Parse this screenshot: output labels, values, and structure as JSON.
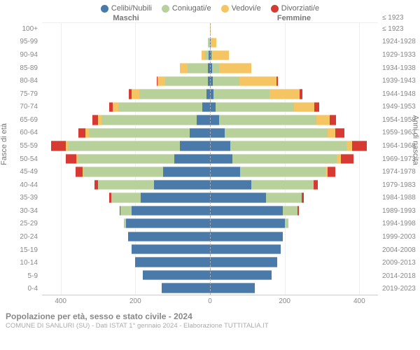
{
  "type": "population-pyramid",
  "legend": [
    {
      "label": "Celibi/Nubili",
      "color": "#4a7aa9"
    },
    {
      "label": "Coniugati/e",
      "color": "#b8d09a"
    },
    {
      "label": "Vedovi/e",
      "color": "#f6c563"
    },
    {
      "label": "Divorziati/e",
      "color": "#d63a32"
    }
  ],
  "header": {
    "male": "Maschi",
    "female": "Femmine",
    "birth_year_top": "≤ 1923"
  },
  "axis": {
    "x_ticks": [
      -400,
      -200,
      0,
      200,
      400
    ],
    "x_max": 450,
    "y_left_title": "Fasce di età",
    "y_right_title": "Anni di nascita",
    "grid_color": "#eeeeee",
    "center_dash_color": "#aaaaaa",
    "background": "#ffffff"
  },
  "age_bands": [
    "100+",
    "95-99",
    "90-94",
    "85-89",
    "80-84",
    "75-79",
    "70-74",
    "65-69",
    "60-64",
    "55-59",
    "50-54",
    "45-49",
    "40-44",
    "35-39",
    "30-34",
    "25-29",
    "20-24",
    "15-19",
    "10-14",
    "5-9",
    "0-4"
  ],
  "birth_years": [
    "≤ 1923",
    "1924-1928",
    "1929-1933",
    "1934-1938",
    "1939-1943",
    "1944-1948",
    "1949-1953",
    "1954-1958",
    "1959-1963",
    "1964-1968",
    "1969-1973",
    "1974-1978",
    "1979-1983",
    "1984-1988",
    "1989-1993",
    "1994-1998",
    "1999-2003",
    "2004-2008",
    "2009-2013",
    "2014-2018",
    "2019-2023"
  ],
  "male": [
    {
      "celibi": 0,
      "coniugati": 0,
      "vedovi": 0,
      "div": 0
    },
    {
      "celibi": 0,
      "coniugati": 3,
      "vedovi": 3,
      "div": 0
    },
    {
      "celibi": 3,
      "coniugati": 10,
      "vedovi": 10,
      "div": 0
    },
    {
      "celibi": 5,
      "coniugati": 55,
      "vedovi": 20,
      "div": 0
    },
    {
      "celibi": 5,
      "coniugati": 115,
      "vedovi": 20,
      "div": 3
    },
    {
      "celibi": 10,
      "coniugati": 180,
      "vedovi": 20,
      "div": 8
    },
    {
      "celibi": 20,
      "coniugati": 225,
      "vedovi": 15,
      "div": 10
    },
    {
      "celibi": 35,
      "coniugati": 255,
      "vedovi": 10,
      "div": 15
    },
    {
      "celibi": 55,
      "coniugati": 270,
      "vedovi": 8,
      "div": 20
    },
    {
      "celibi": 80,
      "coniugati": 300,
      "vedovi": 6,
      "div": 40
    },
    {
      "celibi": 95,
      "coniugati": 260,
      "vedovi": 4,
      "div": 28
    },
    {
      "celibi": 125,
      "coniugati": 215,
      "vedovi": 2,
      "div": 18
    },
    {
      "celibi": 150,
      "coniugati": 150,
      "vedovi": 0,
      "div": 10
    },
    {
      "celibi": 185,
      "coniugati": 80,
      "vedovi": 0,
      "div": 5
    },
    {
      "celibi": 210,
      "coniugati": 30,
      "vedovi": 0,
      "div": 2
    },
    {
      "celibi": 225,
      "coniugati": 6,
      "vedovi": 0,
      "div": 0
    },
    {
      "celibi": 220,
      "coniugati": 0,
      "vedovi": 0,
      "div": 0
    },
    {
      "celibi": 210,
      "coniugati": 0,
      "vedovi": 0,
      "div": 0
    },
    {
      "celibi": 200,
      "coniugati": 0,
      "vedovi": 0,
      "div": 0
    },
    {
      "celibi": 180,
      "coniugati": 0,
      "vedovi": 0,
      "div": 0
    },
    {
      "celibi": 130,
      "coniugati": 0,
      "vedovi": 0,
      "div": 0
    }
  ],
  "female": [
    {
      "celibi": 0,
      "coniugati": 0,
      "vedovi": 2,
      "div": 0
    },
    {
      "celibi": 2,
      "coniugati": 0,
      "vedovi": 15,
      "div": 0
    },
    {
      "celibi": 3,
      "coniugati": 3,
      "vedovi": 45,
      "div": 0
    },
    {
      "celibi": 5,
      "coniugati": 20,
      "vedovi": 85,
      "div": 0
    },
    {
      "celibi": 8,
      "coniugati": 70,
      "vedovi": 100,
      "div": 3
    },
    {
      "celibi": 10,
      "coniugati": 150,
      "vedovi": 80,
      "div": 8
    },
    {
      "celibi": 15,
      "coniugati": 210,
      "vedovi": 55,
      "div": 12
    },
    {
      "celibi": 25,
      "coniugati": 260,
      "vedovi": 35,
      "div": 18
    },
    {
      "celibi": 40,
      "coniugati": 275,
      "vedovi": 20,
      "div": 25
    },
    {
      "celibi": 55,
      "coniugati": 310,
      "vedovi": 15,
      "div": 40
    },
    {
      "celibi": 60,
      "coniugati": 280,
      "vedovi": 10,
      "div": 35
    },
    {
      "celibi": 80,
      "coniugati": 230,
      "vedovi": 5,
      "div": 20
    },
    {
      "celibi": 110,
      "coniugati": 165,
      "vedovi": 2,
      "div": 12
    },
    {
      "celibi": 150,
      "coniugati": 95,
      "vedovi": 0,
      "div": 6
    },
    {
      "celibi": 195,
      "coniugati": 40,
      "vedovi": 0,
      "div": 3
    },
    {
      "celibi": 200,
      "coniugati": 10,
      "vedovi": 0,
      "div": 0
    },
    {
      "celibi": 195,
      "coniugati": 0,
      "vedovi": 0,
      "div": 0
    },
    {
      "celibi": 190,
      "coniugati": 0,
      "vedovi": 0,
      "div": 0
    },
    {
      "celibi": 180,
      "coniugati": 0,
      "vedovi": 0,
      "div": 0
    },
    {
      "celibi": 165,
      "coniugati": 0,
      "vedovi": 0,
      "div": 0
    },
    {
      "celibi": 120,
      "coniugati": 0,
      "vedovi": 0,
      "div": 0
    }
  ],
  "footer": {
    "title": "Popolazione per età, sesso e stato civile - 2024",
    "sub": "COMUNE DI SANLURI (SU) - Dati ISTAT 1° gennaio 2024 - Elaborazione TUTTITALIA.IT"
  },
  "style": {
    "bar_height_pct": 78,
    "label_fontsize": 10,
    "legend_fontsize": 11
  }
}
